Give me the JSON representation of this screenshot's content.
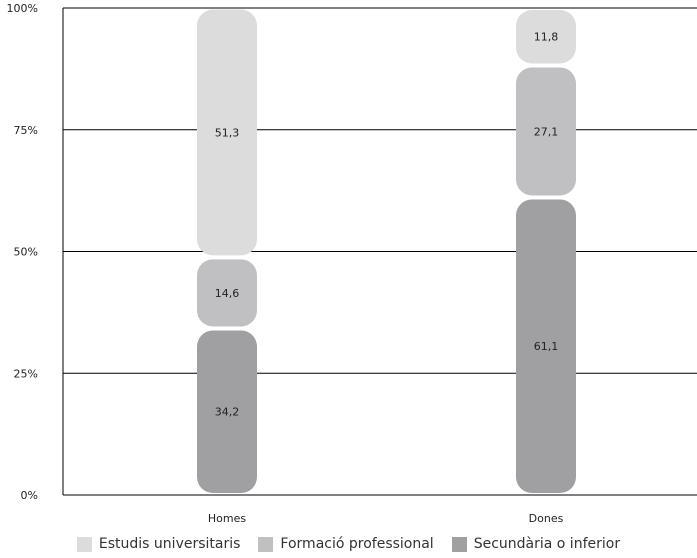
{
  "chart_data": {
    "type": "bar",
    "stacked": true,
    "categories": [
      "Homes",
      "Dones"
    ],
    "series": [
      {
        "name": "Secundària o inferior",
        "values": [
          34.2,
          61.1
        ],
        "labels": [
          "34,2",
          "61,1"
        ],
        "color": "#a0a0a3"
      },
      {
        "name": "Formació professional",
        "values": [
          14.6,
          27.1
        ],
        "labels": [
          "14,6",
          "27,1"
        ],
        "color": "#c0c0c2"
      },
      {
        "name": "Estudis universitaris",
        "values": [
          51.3,
          11.8
        ],
        "labels": [
          "51,3",
          "11,8"
        ],
        "color": "#dcdcdd"
      }
    ],
    "yticks": [
      "0%",
      "25%",
      "50%",
      "75%",
      "100%"
    ],
    "ylim": [
      0,
      100
    ],
    "grid": true,
    "legend_position": "bottom",
    "legend_order": [
      "Estudis universitaris",
      "Formació professional",
      "Secundària o inferior"
    ]
  }
}
